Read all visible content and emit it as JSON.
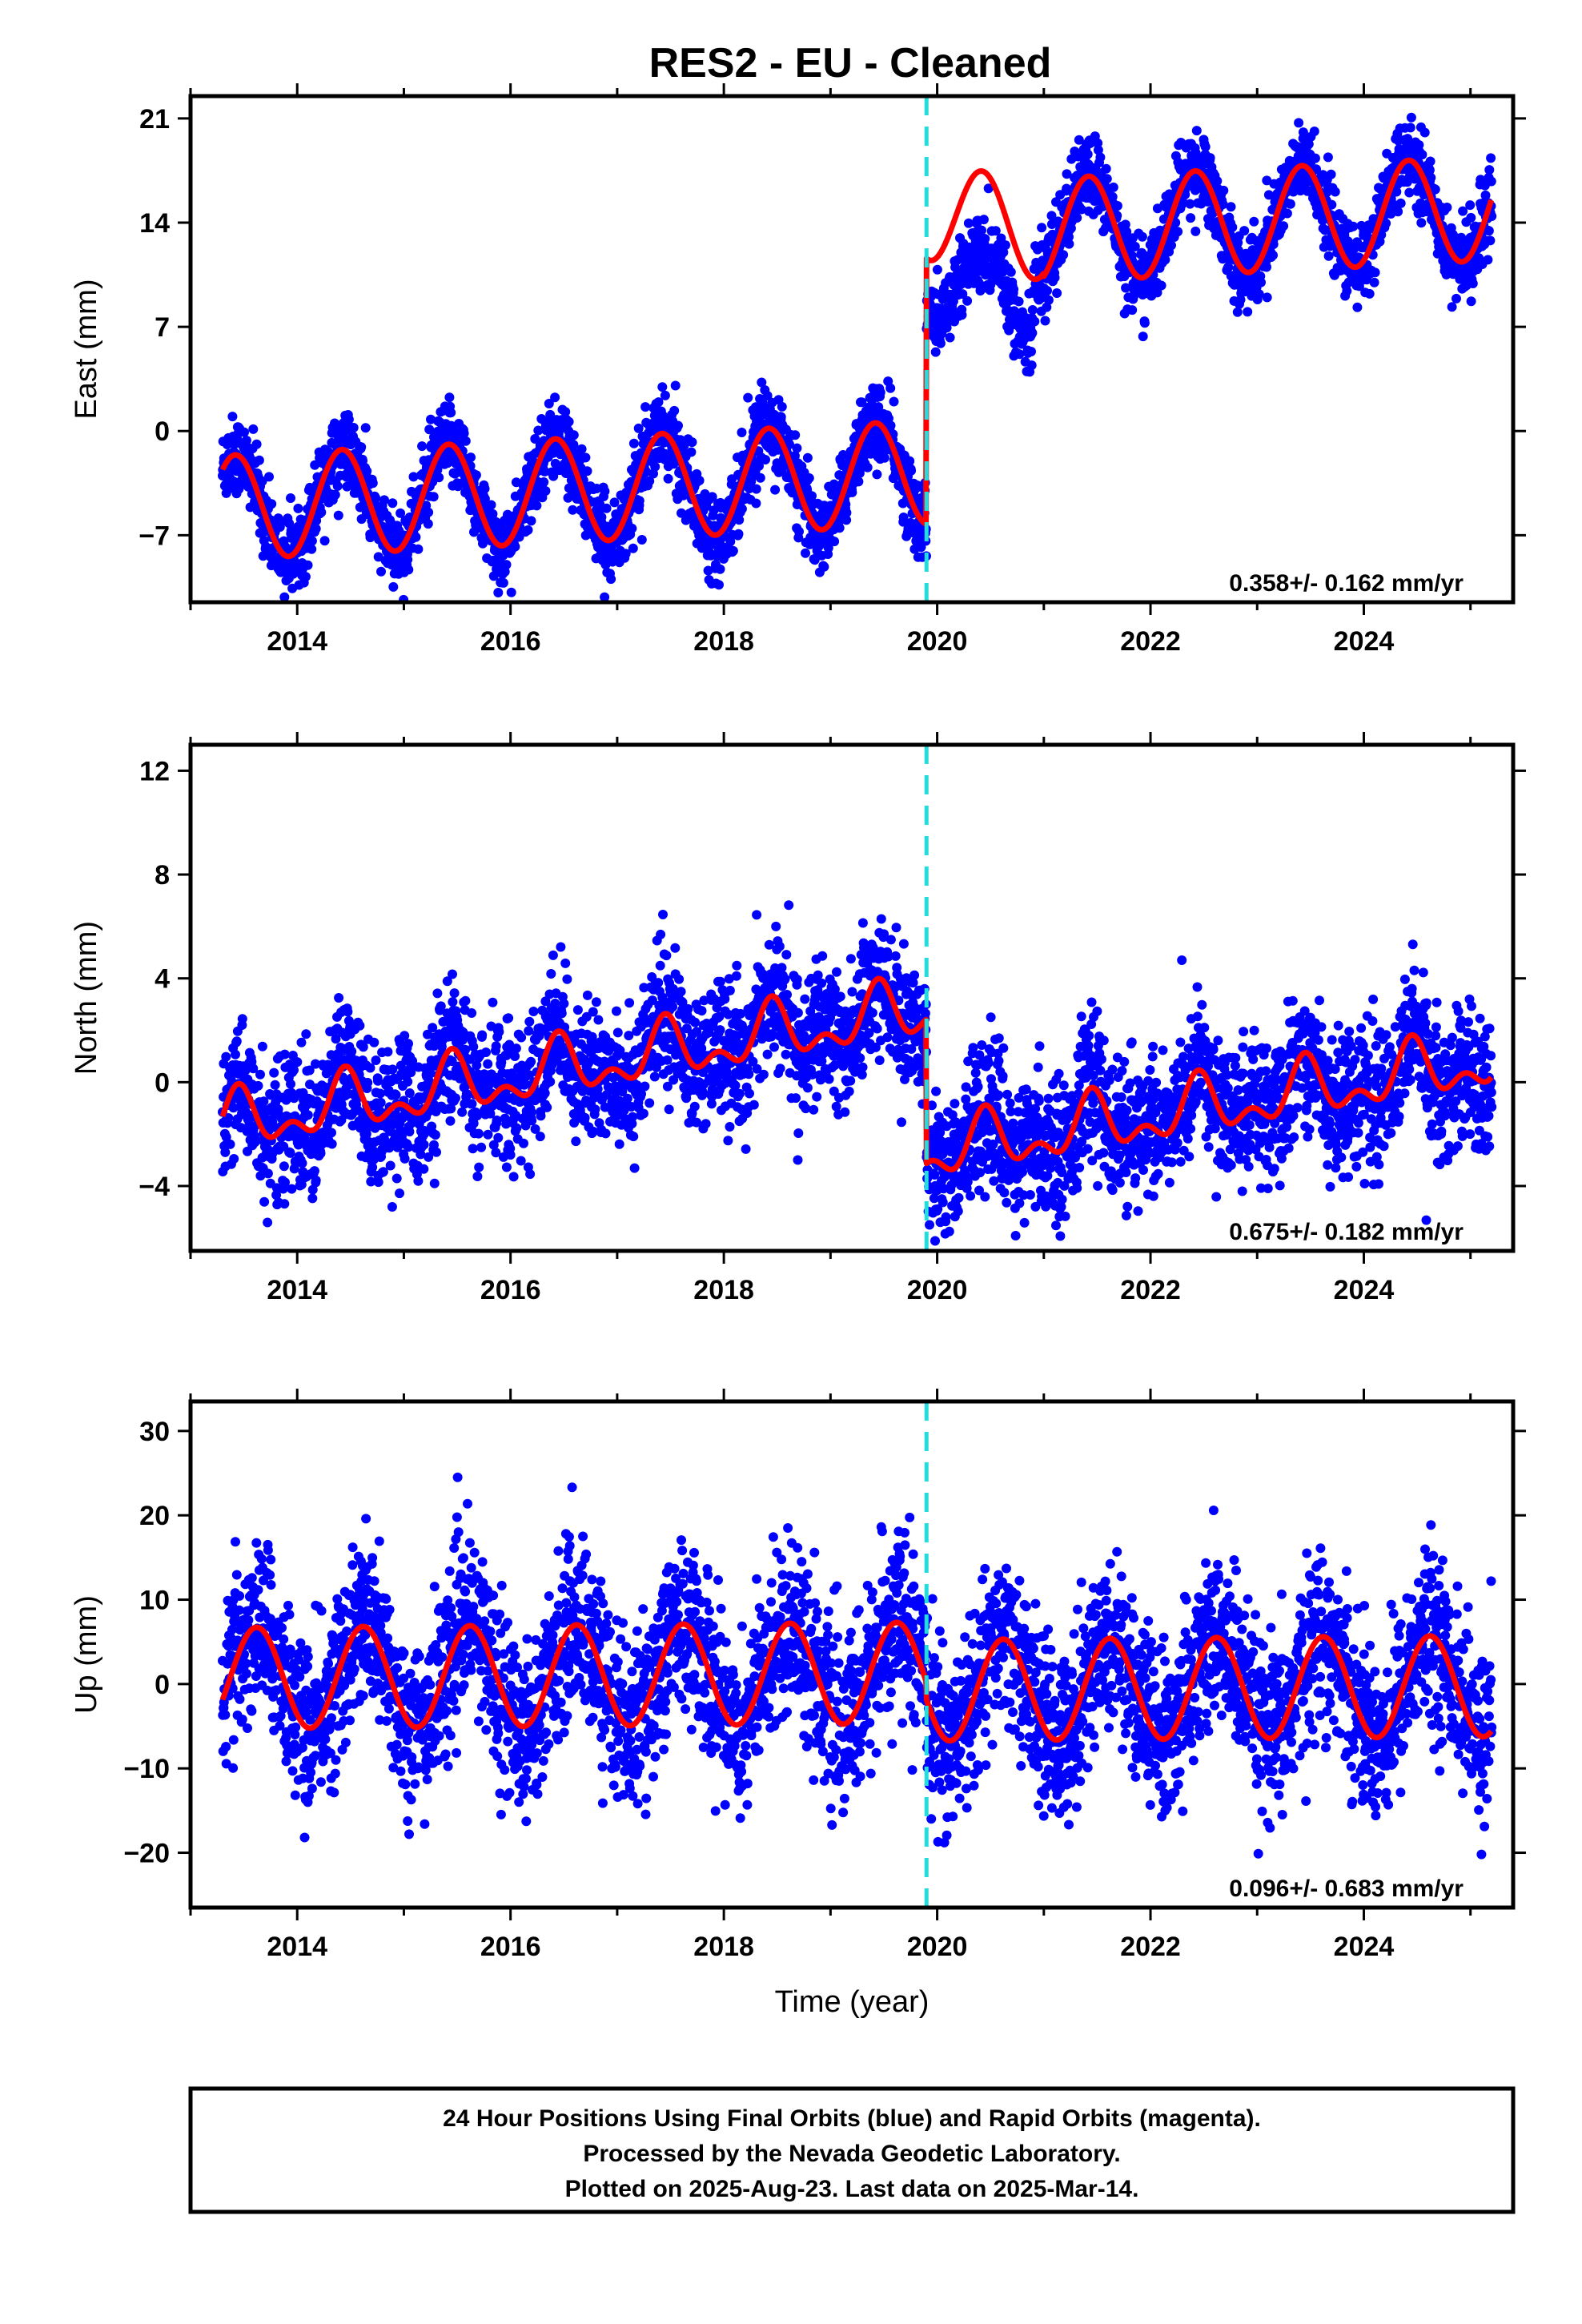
{
  "title": "RES2  - EU - Cleaned",
  "footer": {
    "lines": [
      "24 Hour Positions Using Final Orbits (blue) and Rapid Orbits (magenta).",
      "Processed by the Nevada Geodetic Laboratory.",
      "Plotted on 2025-Aug-23. Last data on 2025-Mar-14."
    ]
  },
  "colors": {
    "points": "#0000ff",
    "model": "#ff0000",
    "offset_line": "#22dddd"
  },
  "chart_data": [
    {
      "type": "scatter",
      "component": "east",
      "ylabel": "East (mm)",
      "xlabel": "",
      "xlim": [
        2013.0,
        2025.4
      ],
      "ylim": [
        -11.5,
        22.5
      ],
      "yticks": [
        -7,
        0,
        7,
        14,
        21
      ],
      "xticks": [
        2014,
        2016,
        2018,
        2020,
        2022,
        2024
      ],
      "offset_epoch": 2019.9,
      "rate_label": "0.358+/- 0.162 mm/yr",
      "data_start": 2013.3,
      "data_end": 2025.2,
      "model": {
        "rate_mm_per_yr": 0.358,
        "intercept_pre": -4.0,
        "intercept_post": 14.0,
        "annual_amplitude": 3.5,
        "peak_epoch_fraction": 0.42,
        "step_mm": 15.8,
        "postseismic_gap": [
          2019.9,
          2020.9
        ],
        "scatter_mm": 1.3
      }
    },
    {
      "type": "scatter",
      "component": "north",
      "ylabel": "North (mm)",
      "xlabel": "",
      "xlim": [
        2013.0,
        2025.4
      ],
      "ylim": [
        -6.5,
        13.0
      ],
      "yticks": [
        -4,
        0,
        4,
        8,
        12
      ],
      "xticks": [
        2014,
        2016,
        2018,
        2020,
        2022,
        2024
      ],
      "offset_epoch": 2019.9,
      "rate_label": "0.675+/- 0.182 mm/yr",
      "data_start": 2013.3,
      "data_end": 2025.2,
      "model": {
        "rate_mm_per_yr": 0.675,
        "intercept_pre": 0.5,
        "intercept_post": -1.0,
        "annual_amplitude": 0.9,
        "semiannual_amplitude": 0.6,
        "peak_epoch_fraction": 0.45,
        "step_mm": -6.0,
        "scatter_mm": 1.3
      }
    },
    {
      "type": "scatter",
      "component": "up",
      "ylabel": "Up (mm)",
      "xlabel": "Time (year)",
      "xlim": [
        2013.0,
        2025.4
      ],
      "ylim": [
        -26.5,
        33.5
      ],
      "yticks": [
        -20,
        -10,
        0,
        10,
        20,
        30
      ],
      "xticks": [
        2014,
        2016,
        2018,
        2020,
        2022,
        2024
      ],
      "offset_epoch": 2019.9,
      "rate_label": "0.096+/- 0.683 mm/yr",
      "data_start": 2013.3,
      "data_end": 2025.2,
      "model": {
        "rate_mm_per_yr": 0.096,
        "intercept_pre": 1.0,
        "intercept_post": -0.5,
        "annual_amplitude": 6.0,
        "peak_epoch_fraction": 0.62,
        "step_mm": -1.5,
        "scatter_mm": 5.0
      }
    }
  ]
}
